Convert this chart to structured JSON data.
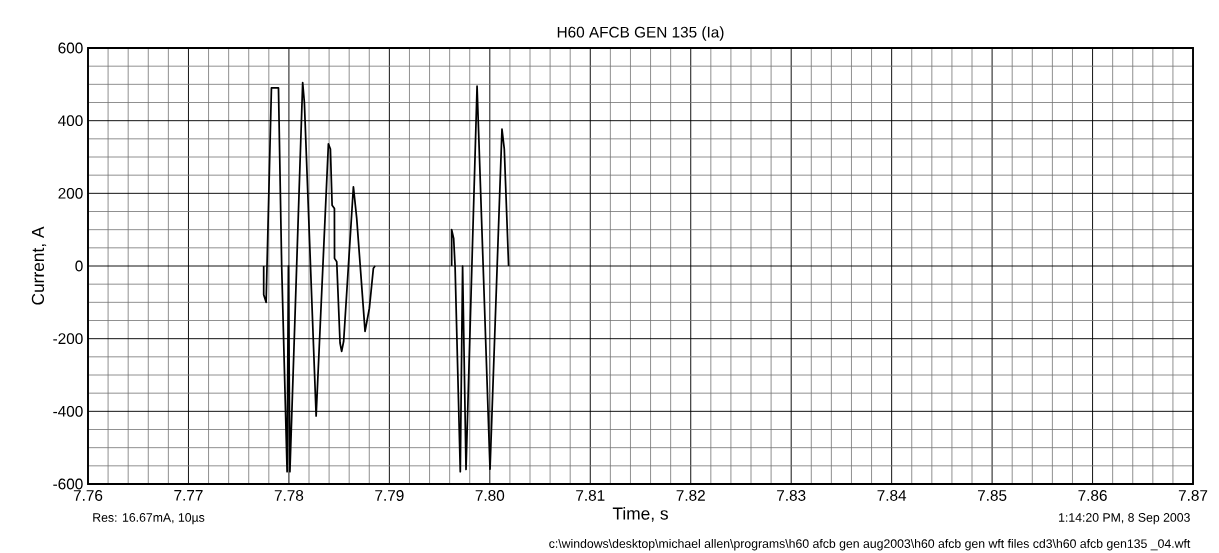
{
  "chart_data": {
    "type": "line",
    "title": "H60 AFCB GEN 135 (Ia)",
    "xlabel": "Time, s",
    "ylabel": "Current, A",
    "annotations": [
      "Res: 16.67mA, 10µs",
      "1:14:20 PM, 8 Sep 2003",
      "c:\\windows\\desktop\\michael allen\\programs\\h60 afcb gen aug2003\\h60 afcb gen wft files cd3\\h60 afcb gen135 _04.wft"
    ],
    "series": [
      {
        "color": "#000000",
        "x": [
          7.77749,
          7.77749,
          7.77773,
          7.77826,
          7.77896,
          7.77928,
          7.77982,
          7.77995,
          7.7801,
          7.78137,
          7.78154,
          7.78271,
          7.78393,
          7.78413,
          7.7843,
          7.78453,
          7.78454,
          7.78476,
          7.78509,
          7.78525,
          7.78545,
          7.78642,
          7.78675,
          7.78758,
          7.78801,
          7.78841,
          7.78858,
          null,
          7.7962,
          7.7962,
          7.7964,
          7.79654,
          7.79706,
          7.79729,
          7.79763,
          7.79873,
          7.80002,
          7.80121,
          7.80144,
          7.80187
        ],
        "values": [
          0,
          -79,
          -100,
          490,
          490,
          0,
          -566,
          0,
          -566,
          505,
          450,
          -413,
          336,
          322,
          167,
          158,
          21,
          12,
          -212,
          -235,
          -207,
          218,
          131,
          -180,
          -116,
          -6,
          0,
          null,
          0,
          100,
          76,
          0,
          -566,
          0,
          -560,
          495,
          -559,
          377,
          322,
          0
        ]
      }
    ],
    "xlim": [
      7.76,
      7.87
    ],
    "ylim": [
      -600,
      600
    ],
    "xticks": [
      7.76,
      {
        "value": 7.762,
        "label": null
      },
      {
        "value": 7.764,
        "label": null
      },
      {
        "value": 7.766,
        "label": null
      },
      {
        "value": 7.768,
        "label": null
      },
      7.77,
      {
        "value": 7.772,
        "label": null
      },
      {
        "value": 7.774,
        "label": null
      },
      {
        "value": 7.776,
        "label": null
      },
      {
        "value": 7.778,
        "label": null
      },
      7.78,
      {
        "value": 7.782,
        "label": null
      },
      {
        "value": 7.784,
        "label": null
      },
      {
        "value": 7.786,
        "label": null
      },
      {
        "value": 7.788,
        "label": null
      },
      7.79,
      {
        "value": 7.792,
        "label": null
      },
      {
        "value": 7.794,
        "label": null
      },
      {
        "value": 7.796,
        "label": null
      },
      {
        "value": 7.798,
        "label": null
      },
      {
        "value": 7.8,
        "label": "7.80"
      },
      {
        "value": 7.802,
        "label": null
      },
      {
        "value": 7.804,
        "label": null
      },
      {
        "value": 7.806,
        "label": null
      },
      {
        "value": 7.808,
        "label": null
      },
      7.81,
      {
        "value": 7.812,
        "label": null
      },
      {
        "value": 7.814,
        "label": null
      },
      {
        "value": 7.816,
        "label": null
      },
      {
        "value": 7.818,
        "label": null
      },
      7.82,
      {
        "value": 7.822,
        "label": null
      },
      {
        "value": 7.824,
        "label": null
      },
      {
        "value": 7.826,
        "label": null
      },
      {
        "value": 7.828,
        "label": null
      },
      7.83,
      {
        "value": 7.832,
        "label": null
      },
      {
        "value": 7.834,
        "label": null
      },
      {
        "value": 7.836,
        "label": null
      },
      {
        "value": 7.838,
        "label": null
      },
      7.84,
      {
        "value": 7.842,
        "label": null
      },
      {
        "value": 7.844,
        "label": null
      },
      {
        "value": 7.846,
        "label": null
      },
      {
        "value": 7.848,
        "label": null
      },
      7.85,
      {
        "value": 7.852,
        "label": null
      },
      {
        "value": 7.854,
        "label": null
      },
      {
        "value": 7.856,
        "label": null
      },
      {
        "value": 7.858,
        "label": null
      },
      7.86,
      {
        "value": 7.862,
        "label": null
      },
      {
        "value": 7.864,
        "label": null
      },
      {
        "value": 7.866,
        "label": null
      },
      {
        "value": 7.868,
        "label": null
      },
      7.87
    ],
    "yticks": [
      -600,
      {
        "value": -550,
        "label": null
      },
      {
        "value": -500,
        "label": null
      },
      {
        "value": -450,
        "label": null
      },
      -400,
      {
        "value": -350,
        "label": null
      },
      {
        "value": -300,
        "label": null
      },
      {
        "value": -250,
        "label": null
      },
      -200,
      {
        "value": -150,
        "label": null
      },
      {
        "value": -100,
        "label": null
      },
      {
        "value": -50,
        "label": null
      },
      0,
      {
        "value": 50,
        "label": null
      },
      {
        "value": 100,
        "label": null
      },
      {
        "value": 150,
        "label": null
      },
      200,
      {
        "value": 250,
        "label": null
      },
      {
        "value": 300,
        "label": null
      },
      {
        "value": 350,
        "label": null
      },
      400,
      {
        "value": 450,
        "label": null
      },
      {
        "value": 500,
        "label": null
      },
      {
        "value": 550,
        "label": null
      },
      600
    ],
    "grid": true,
    "marker": "none",
    "line_style": "solid"
  }
}
